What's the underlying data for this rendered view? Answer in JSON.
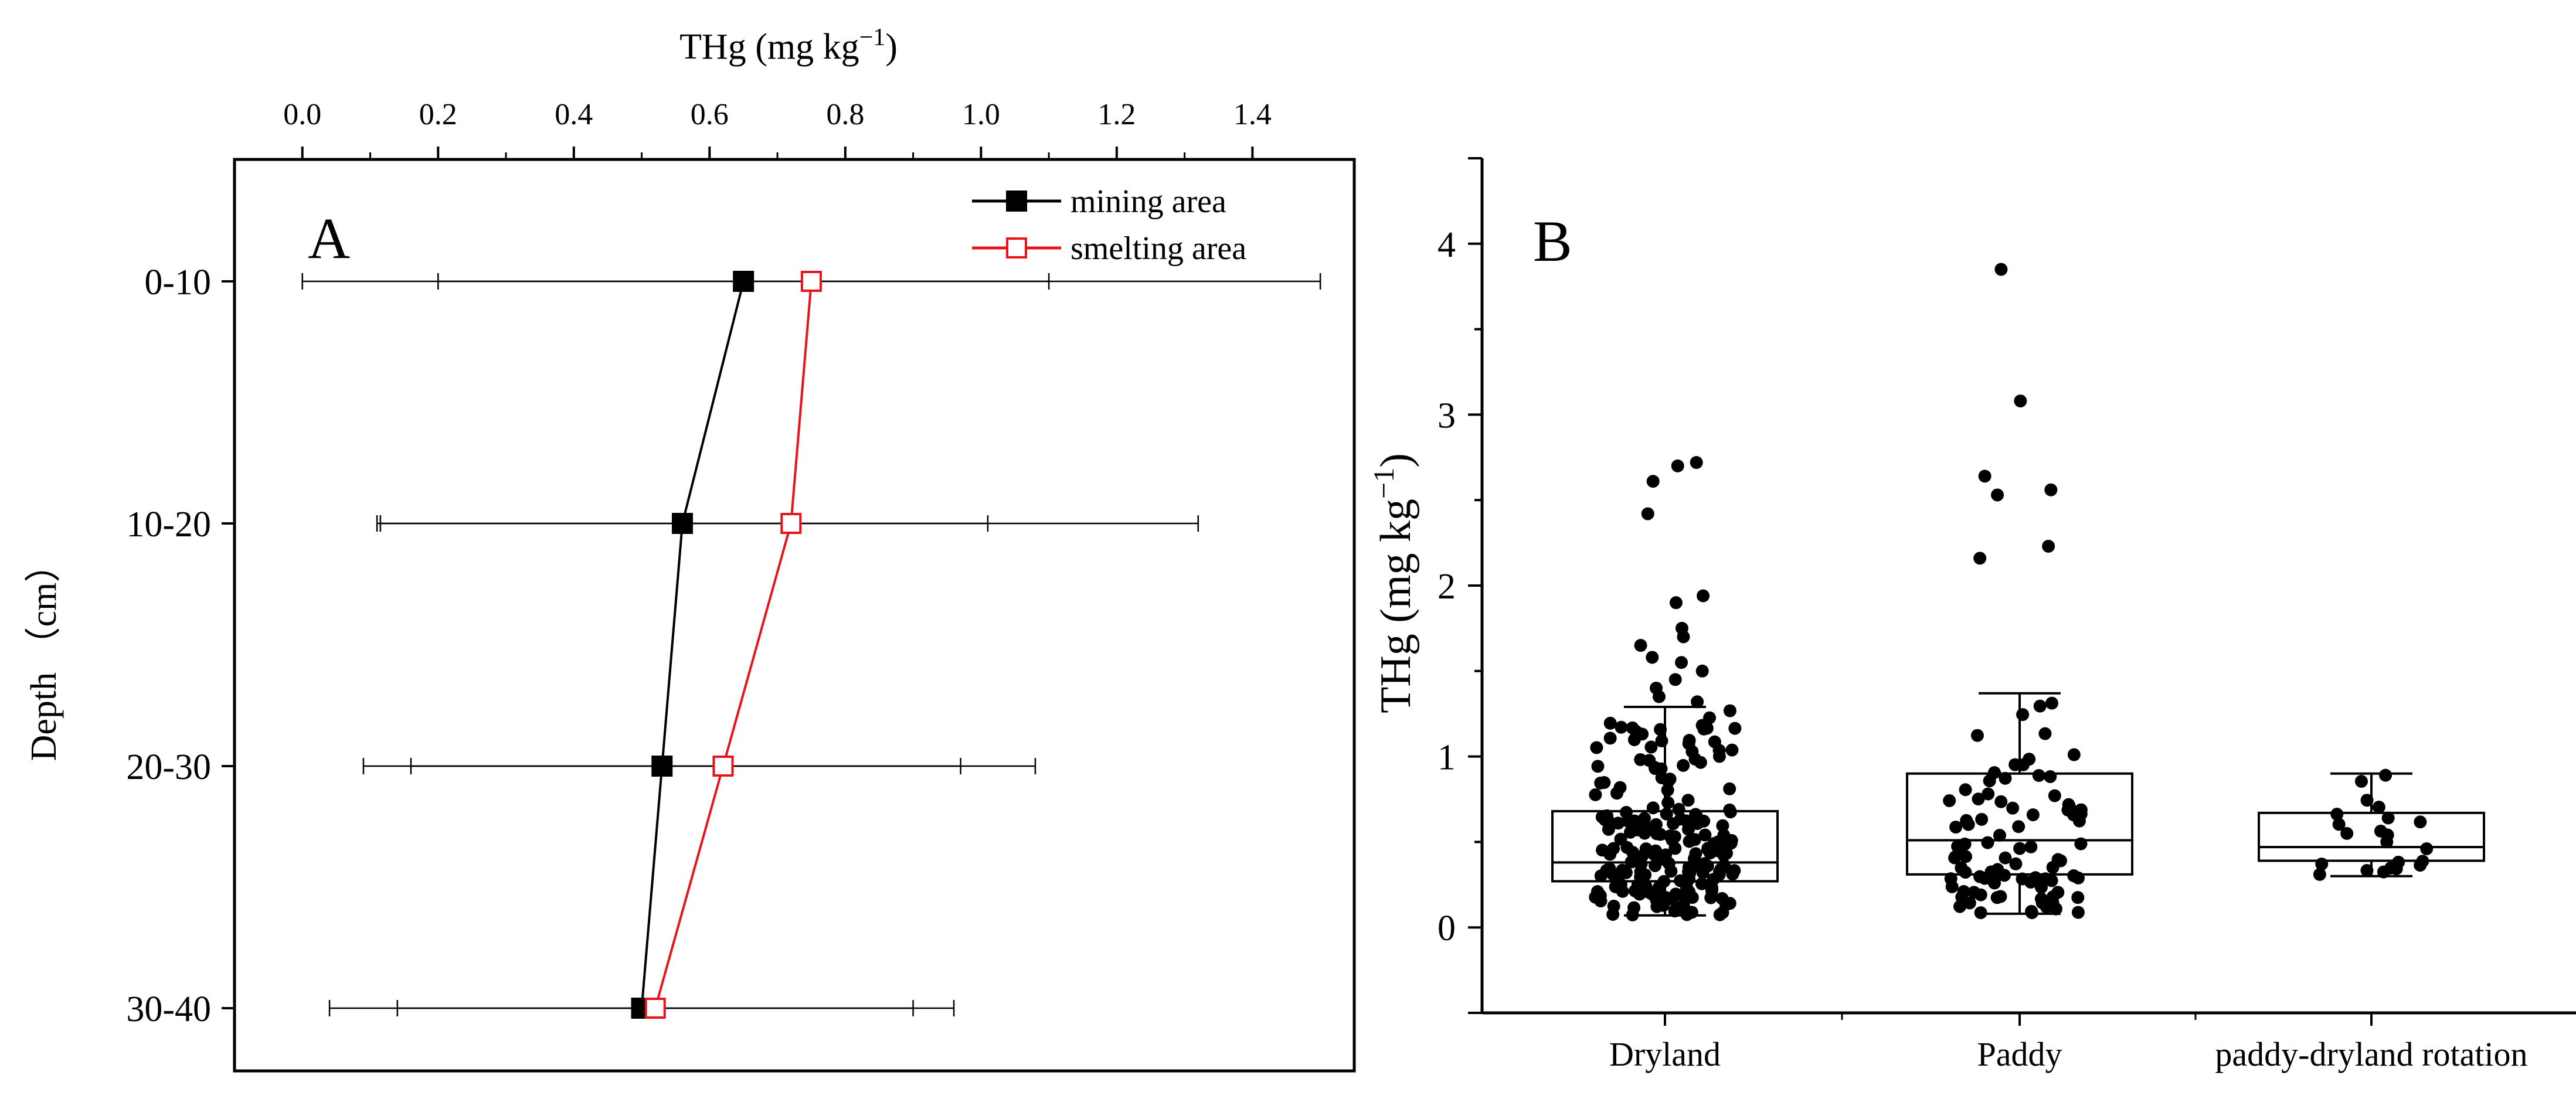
{
  "colors": {
    "mining": "#000000",
    "smelting": "#e8141b",
    "axis": "#000000",
    "background": "#ffffff"
  },
  "chart_data": [
    {
      "panel": "A",
      "type": "line",
      "orientation": "horizontal-profile",
      "panel_label": "A",
      "xlabel": "THg (mg kg⁻¹)",
      "ylabel": "Depth （cm）",
      "xlim": [
        -0.1,
        1.55
      ],
      "x_ticks": [
        0.0,
        0.2,
        0.4,
        0.6,
        0.8,
        1.0,
        1.2,
        1.4
      ],
      "x_tick_labels": [
        "0.0",
        "0.2",
        "0.4",
        "0.6",
        "0.8",
        "1.0",
        "1.2",
        "1.4"
      ],
      "categories": [
        "0-10",
        "10-20",
        "20-30",
        "30-40"
      ],
      "legend_position": "top-right",
      "series": [
        {
          "name": "mining area",
          "marker": "filled-square",
          "values": [
            0.65,
            0.56,
            0.53,
            0.5
          ],
          "error_low": [
            0.2,
            0.115,
            0.16,
            0.14
          ],
          "error_high": [
            1.1,
            1.01,
            0.97,
            0.9
          ]
        },
        {
          "name": "smelting area",
          "marker": "open-square",
          "values": [
            0.75,
            0.72,
            0.62,
            0.52
          ],
          "error_low": [
            0.0,
            0.11,
            0.09,
            0.04
          ],
          "error_high": [
            1.5,
            1.32,
            1.08,
            0.96
          ]
        }
      ]
    },
    {
      "panel": "B",
      "type": "box",
      "panel_label": "B",
      "xlabel": "",
      "ylabel": "THg (mg kg⁻¹)",
      "ylim": [
        -0.5,
        4.5
      ],
      "y_ticks": [
        0,
        1,
        2,
        3,
        4
      ],
      "y_tick_labels": [
        "0",
        "1",
        "2",
        "3",
        "4"
      ],
      "categories": [
        "Dryland",
        "Paddy",
        "paddy-dryland rotation"
      ],
      "boxes": [
        {
          "name": "Dryland",
          "min": 0.07,
          "q1": 0.27,
          "median": 0.38,
          "q3": 0.68,
          "max": 1.29,
          "outliers": [
            2.72,
            2.7,
            2.61,
            2.42,
            1.94,
            1.9,
            1.75,
            1.7,
            1.65,
            1.58,
            1.55,
            1.5,
            1.45,
            1.4,
            1.35,
            1.32
          ],
          "n_points": 200
        },
        {
          "name": "Paddy",
          "min": 0.08,
          "q1": 0.31,
          "median": 0.51,
          "q3": 0.9,
          "max": 1.37,
          "outliers": [
            3.85,
            3.08,
            2.64,
            2.56,
            2.53,
            2.23,
            2.16
          ],
          "n_points": 90
        },
        {
          "name": "paddy-dryland rotation",
          "min": 0.3,
          "q1": 0.39,
          "median": 0.47,
          "q3": 0.67,
          "max": 0.9,
          "outliers": [],
          "n_points": 22
        }
      ]
    }
  ]
}
